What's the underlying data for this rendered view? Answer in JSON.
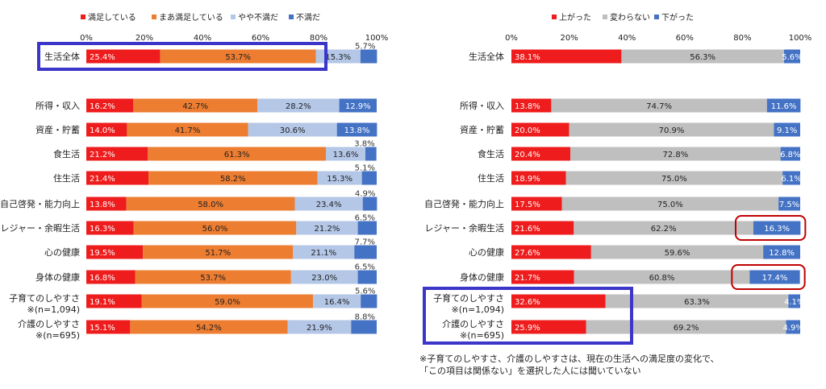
{
  "chart_data": [
    {
      "type": "bar",
      "stacked": true,
      "orientation": "horizontal",
      "xlim": [
        0,
        100
      ],
      "tick_labels": [
        "0%",
        "20%",
        "40%",
        "60%",
        "80%",
        "100%"
      ],
      "legend_position": "top",
      "grid": false,
      "categories": [
        "生活全体",
        "所得・収入",
        "資産・貯蓄",
        "食生活",
        "住生活",
        "自己啓発・能力向上",
        "レジャー・余暇生活",
        "心の健康",
        "身体の健康",
        "子育てのしやすさ",
        "介護のしやすさ"
      ],
      "category_notes": [
        "",
        "",
        "",
        "",
        "",
        "",
        "",
        "",
        "",
        "※(n=1,094)",
        "※(n=695)"
      ],
      "series": [
        {
          "name": "満足している",
          "color": "#ee1c1c",
          "values": [
            25.4,
            16.2,
            14.0,
            21.2,
            21.4,
            13.8,
            16.3,
            19.5,
            16.8,
            19.1,
            15.1
          ],
          "labels": [
            "25.4%",
            "16.2%",
            "14.0%",
            "21.2%",
            "21.4%",
            "13.8%",
            "16.3%",
            "19.5%",
            "16.8%",
            "19.1%",
            "15.1%"
          ]
        },
        {
          "name": "まあ満足している",
          "color": "#ed7d31",
          "values": [
            53.7,
            42.7,
            41.7,
            61.3,
            58.2,
            58.0,
            56.0,
            51.7,
            53.7,
            59.0,
            54.2
          ],
          "labels": [
            "53.7%",
            "42.7%",
            "41.7%",
            "61.3%",
            "58.2%",
            "58.0%",
            "56.0%",
            "51.7%",
            "53.7%",
            "59.0%",
            "54.2%"
          ]
        },
        {
          "name": "やや不満だ",
          "color": "#b4c7e7",
          "values": [
            15.3,
            28.2,
            30.6,
            13.6,
            15.3,
            23.4,
            21.2,
            21.1,
            23.0,
            16.4,
            21.9
          ],
          "labels": [
            "15.3%",
            "28.2%",
            "30.6%",
            "13.6%",
            "15.3%",
            "23.4%",
            "21.2%",
            "21.1%",
            "23.0%",
            "16.4%",
            "21.9%"
          ]
        },
        {
          "name": "不満だ",
          "color": "#4472c4",
          "values": [
            5.7,
            12.9,
            13.8,
            3.8,
            5.1,
            4.9,
            6.5,
            7.7,
            6.5,
            5.6,
            8.8
          ],
          "labels": [
            "5.7%",
            "12.9%",
            "13.8%",
            "3.8%",
            "5.1%",
            "4.9%",
            "6.5%",
            "7.7%",
            "6.5%",
            "5.6%",
            "8.8%"
          ]
        }
      ],
      "highlight_rows": [
        0
      ],
      "highlight_color": "#3b35c9"
    },
    {
      "type": "bar",
      "stacked": true,
      "orientation": "horizontal",
      "xlim": [
        0,
        100
      ],
      "tick_labels": [
        "0%",
        "20%",
        "40%",
        "60%",
        "80%",
        "100%"
      ],
      "legend_position": "top",
      "grid": false,
      "categories": [
        "生活全体",
        "所得・収入",
        "資産・貯蓄",
        "食生活",
        "住生活",
        "自己啓発・能力向上",
        "レジャー・余暇生活",
        "心の健康",
        "身体の健康",
        "子育てのしやすさ",
        "介護のしやすさ"
      ],
      "category_notes": [
        "",
        "",
        "",
        "",
        "",
        "",
        "",
        "",
        "",
        "※(n=1,094)",
        "※(n=695)"
      ],
      "series": [
        {
          "name": "上がった",
          "color": "#ee1c1c",
          "values": [
            38.1,
            13.8,
            20.0,
            20.4,
            18.9,
            17.5,
            21.6,
            27.6,
            21.7,
            32.6,
            25.9
          ],
          "labels": [
            "38.1%",
            "13.8%",
            "20.0%",
            "20.4%",
            "18.9%",
            "17.5%",
            "21.6%",
            "27.6%",
            "21.7%",
            "32.6%",
            "25.9%"
          ]
        },
        {
          "name": "変わらない",
          "color": "#bfbfbf",
          "values": [
            56.3,
            74.7,
            70.9,
            72.8,
            75.0,
            75.0,
            62.2,
            59.6,
            60.8,
            63.3,
            69.2
          ],
          "labels": [
            "56.3%",
            "74.7%",
            "70.9%",
            "72.8%",
            "75.0%",
            "75.0%",
            "62.2%",
            "59.6%",
            "60.8%",
            "63.3%",
            "69.2%"
          ]
        },
        {
          "name": "下がった",
          "color": "#4472c4",
          "values": [
            5.6,
            11.6,
            9.1,
            6.8,
            6.1,
            7.5,
            16.3,
            12.8,
            17.4,
            4.1,
            4.9
          ],
          "labels": [
            "5.6%",
            "11.6%",
            "9.1%",
            "6.8%",
            "6.1%",
            "7.5%",
            "16.3%",
            "12.8%",
            "17.4%",
            "4.1%",
            "4.9%"
          ]
        }
      ],
      "highlight_rows": [
        9,
        10
      ],
      "highlight_color": "#3b35c9",
      "circled_values": [
        [
          6,
          2
        ],
        [
          8,
          2
        ]
      ],
      "circle_color": "#c00000"
    }
  ],
  "footnote": {
    "line1": "※子育てのしやすさ、介護のしやすさは、現在の生活への満足度の変化で、",
    "line2": "「この項目は関係ない」を選択した人には聞いていない"
  }
}
